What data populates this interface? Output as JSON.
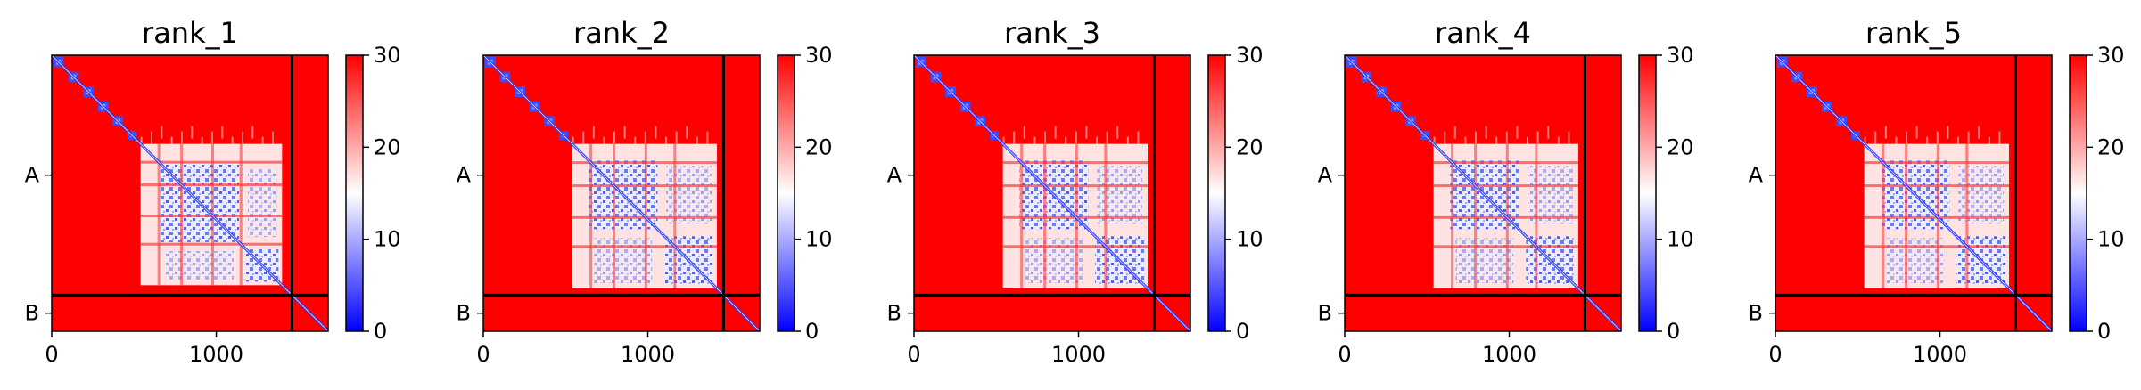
{
  "chart_data": [
    {
      "type": "heatmap",
      "title": "rank_1",
      "x_ticks": [
        0,
        1000
      ],
      "y_tick_labels": [
        "A",
        "B"
      ],
      "chain_boundary": 1460,
      "total_length": 1680,
      "xlim": [
        0,
        1680
      ],
      "colorbar": {
        "ticks": [
          0,
          10,
          20,
          30
        ],
        "range": [
          0,
          30
        ],
        "colors": [
          "#0000ff",
          "#ffffff",
          "#ff0000"
        ]
      },
      "domain_blocks": [
        [
          0,
          85
        ],
        [
          90,
          175
        ],
        [
          180,
          265
        ],
        [
          270,
          355
        ],
        [
          360,
          445
        ],
        [
          450,
          525
        ]
      ],
      "low_region": [
        [
          540,
          1400
        ]
      ],
      "sub_blocks": [
        [
          640,
          1160
        ],
        [
          1160,
          1400
        ]
      ]
    },
    {
      "type": "heatmap",
      "title": "rank_2",
      "x_ticks": [
        0,
        1000
      ],
      "y_tick_labels": [
        "A",
        "B"
      ],
      "chain_boundary": 1460,
      "total_length": 1680,
      "xlim": [
        0,
        1680
      ],
      "colorbar": {
        "ticks": [
          0,
          10,
          20,
          30
        ],
        "range": [
          0,
          30
        ],
        "colors": [
          "#0000ff",
          "#ffffff",
          "#ff0000"
        ]
      },
      "domain_blocks": [
        [
          0,
          85
        ],
        [
          90,
          175
        ],
        [
          180,
          265
        ],
        [
          270,
          355
        ],
        [
          360,
          445
        ],
        [
          450,
          525
        ]
      ],
      "low_region": [
        [
          540,
          1420
        ]
      ],
      "sub_blocks": [
        [
          620,
          1080
        ],
        [
          1080,
          1420
        ]
      ]
    },
    {
      "type": "heatmap",
      "title": "rank_3",
      "x_ticks": [
        0,
        1000
      ],
      "y_tick_labels": [
        "A",
        "B"
      ],
      "chain_boundary": 1460,
      "total_length": 1680,
      "xlim": [
        0,
        1680
      ],
      "colorbar": {
        "ticks": [
          0,
          10,
          20,
          30
        ],
        "range": [
          0,
          30
        ],
        "colors": [
          "#0000ff",
          "#ffffff",
          "#ff0000"
        ]
      },
      "domain_blocks": [
        [
          0,
          85
        ],
        [
          90,
          175
        ],
        [
          180,
          265
        ],
        [
          270,
          355
        ],
        [
          360,
          445
        ],
        [
          450,
          525
        ]
      ],
      "low_region": [
        [
          540,
          1420
        ]
      ],
      "sub_blocks": [
        [
          620,
          1080
        ],
        [
          1080,
          1420
        ]
      ]
    },
    {
      "type": "heatmap",
      "title": "rank_4",
      "x_ticks": [
        0,
        1000
      ],
      "y_tick_labels": [
        "A",
        "B"
      ],
      "chain_boundary": 1460,
      "total_length": 1680,
      "xlim": [
        0,
        1680
      ],
      "colorbar": {
        "ticks": [
          0,
          10,
          20,
          30
        ],
        "range": [
          0,
          30
        ],
        "colors": [
          "#0000ff",
          "#ffffff",
          "#ff0000"
        ]
      },
      "domain_blocks": [
        [
          0,
          85
        ],
        [
          90,
          175
        ],
        [
          180,
          265
        ],
        [
          270,
          355
        ],
        [
          360,
          445
        ],
        [
          450,
          525
        ]
      ],
      "low_region": [
        [
          540,
          1420
        ]
      ],
      "sub_blocks": [
        [
          620,
          1080
        ],
        [
          1080,
          1420
        ]
      ]
    },
    {
      "type": "heatmap",
      "title": "rank_5",
      "x_ticks": [
        0,
        1000
      ],
      "y_tick_labels": [
        "A",
        "B"
      ],
      "chain_boundary": 1460,
      "total_length": 1680,
      "xlim": [
        0,
        1680
      ],
      "colorbar": {
        "ticks": [
          0,
          10,
          20,
          30
        ],
        "range": [
          0,
          30
        ],
        "colors": [
          "#0000ff",
          "#ffffff",
          "#ff0000"
        ]
      },
      "domain_blocks": [
        [
          0,
          85
        ],
        [
          90,
          175
        ],
        [
          180,
          265
        ],
        [
          270,
          355
        ],
        [
          360,
          445
        ],
        [
          450,
          525
        ]
      ],
      "low_region": [
        [
          540,
          1420
        ]
      ],
      "sub_blocks": [
        [
          620,
          1080
        ],
        [
          1080,
          1420
        ]
      ]
    }
  ]
}
